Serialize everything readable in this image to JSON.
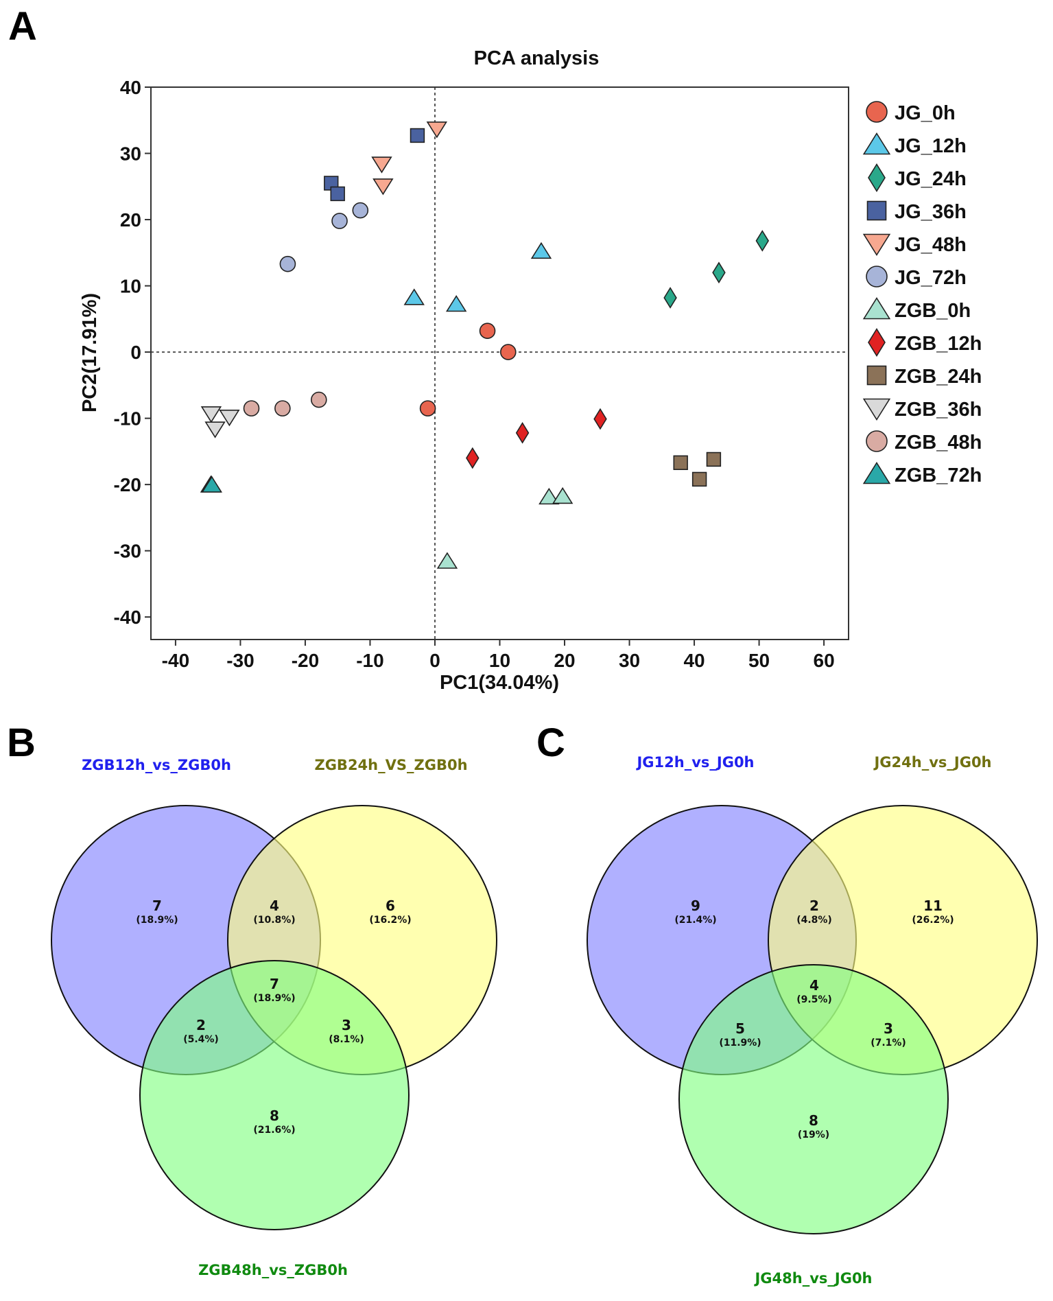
{
  "panels": {
    "a": "A",
    "b": "B",
    "c": "C"
  },
  "chart_data": [
    {
      "type": "scatter",
      "title": "PCA analysis",
      "xlabel": "PC1(34.04%)",
      "ylabel": "PC2(17.91%)",
      "xlim": [
        -43.8,
        63.8
      ],
      "ylim": [
        -43.4,
        40
      ],
      "xticks": [
        -40,
        -30,
        -20,
        -10,
        0,
        10,
        20,
        30,
        40,
        50,
        60
      ],
      "yticks": [
        40,
        30,
        20,
        10,
        0,
        -10,
        -20,
        -30,
        -40
      ],
      "reference_lines": {
        "x": 0,
        "y": 0,
        "style": "dotted"
      },
      "legend_position": "right",
      "series": [
        {
          "name": "JG_0h",
          "marker": "circle",
          "color": "#e8654f",
          "points": [
            [
              8.1,
              3.2
            ],
            [
              11.3,
              0
            ],
            [
              -1.1,
              -8.5
            ]
          ]
        },
        {
          "name": "JG_12h",
          "marker": "triangle-up",
          "color": "#5cc8e8",
          "points": [
            [
              16.4,
              15.2
            ],
            [
              -3.2,
              8.2
            ],
            [
              3.3,
              7.2
            ]
          ]
        },
        {
          "name": "JG_24h",
          "marker": "diamond",
          "color": "#2aa88a",
          "points": [
            [
              50.5,
              16.8
            ],
            [
              43.8,
              12
            ],
            [
              36.3,
              8.2
            ]
          ]
        },
        {
          "name": "JG_36h",
          "marker": "square",
          "color": "#4a62a0",
          "points": [
            [
              -2.7,
              32.7
            ],
            [
              -16,
              25.5
            ],
            [
              -15,
              23.9
            ]
          ]
        },
        {
          "name": "JG_48h",
          "marker": "triangle-down",
          "color": "#f7a890",
          "points": [
            [
              0.3,
              33.7
            ],
            [
              -8.2,
              28.4
            ],
            [
              -8,
              25.1
            ]
          ]
        },
        {
          "name": "JG_72h",
          "marker": "circle",
          "color": "#a7b4d8",
          "points": [
            [
              -22.7,
              13.3
            ],
            [
              -14.7,
              19.8
            ],
            [
              -11.5,
              21.4
            ]
          ]
        },
        {
          "name": "ZGB_0h",
          "marker": "triangle-up",
          "color": "#a9e2d0",
          "points": [
            [
              1.9,
              -31.6
            ],
            [
              17.6,
              -21.9
            ],
            [
              19.7,
              -21.8
            ]
          ]
        },
        {
          "name": "ZGB_12h",
          "marker": "diamond",
          "color": "#e02222",
          "points": [
            [
              5.8,
              -16
            ],
            [
              13.5,
              -12.2
            ],
            [
              25.5,
              -10.1
            ]
          ]
        },
        {
          "name": "ZGB_24h",
          "marker": "square",
          "color": "#8b7258",
          "points": [
            [
              37.9,
              -16.7
            ],
            [
              40.8,
              -19.2
            ],
            [
              43,
              -16.2
            ]
          ]
        },
        {
          "name": "ZGB_36h",
          "marker": "triangle-down",
          "color": "#d9d9d9",
          "points": [
            [
              -34.5,
              -9.3
            ],
            [
              -31.7,
              -9.8
            ],
            [
              -33.9,
              -11.6
            ]
          ]
        },
        {
          "name": "ZGB_48h",
          "marker": "circle",
          "color": "#d9aba3",
          "points": [
            [
              -28.3,
              -8.5
            ],
            [
              -23.5,
              -8.5
            ],
            [
              -17.9,
              -7.2
            ]
          ]
        },
        {
          "name": "ZGB_72h",
          "marker": "triangle-up",
          "color": "#2aa8a8",
          "points": [
            [
              -34.6,
              -20.1
            ],
            [
              -34.5,
              -20.0
            ],
            [
              -34.4,
              -20.1
            ]
          ]
        }
      ]
    },
    {
      "type": "venn",
      "sets": [
        {
          "name": "ZGB12h_vs_ZGB0h",
          "color": "#2020ee"
        },
        {
          "name": "ZGB24h_VS_ZGB0h",
          "color": "#707010"
        },
        {
          "name": "ZGB48h_vs_ZGB0h",
          "color": "#108a10"
        }
      ],
      "regions": {
        "a_only": {
          "count": "7",
          "pct": "(18.9%)"
        },
        "ab": {
          "count": "4",
          "pct": "(10.8%)"
        },
        "b_only": {
          "count": "6",
          "pct": "(16.2%)"
        },
        "abc": {
          "count": "7",
          "pct": "(18.9%)"
        },
        "ac": {
          "count": "2",
          "pct": "(5.4%)"
        },
        "bc": {
          "count": "3",
          "pct": "(8.1%)"
        },
        "c_only": {
          "count": "8",
          "pct": "(21.6%)"
        }
      }
    },
    {
      "type": "venn",
      "sets": [
        {
          "name": "JG12h_vs_JG0h",
          "color": "#2020ee"
        },
        {
          "name": "JG24h_vs_JG0h",
          "color": "#707010"
        },
        {
          "name": "JG48h_vs_JG0h",
          "color": "#108a10"
        }
      ],
      "regions": {
        "a_only": {
          "count": "9",
          "pct": "(21.4%)"
        },
        "ab": {
          "count": "2",
          "pct": "(4.8%)"
        },
        "b_only": {
          "count": "11",
          "pct": "(26.2%)"
        },
        "abc": {
          "count": "4",
          "pct": "(9.5%)"
        },
        "ac": {
          "count": "5",
          "pct": "(11.9%)"
        },
        "bc": {
          "count": "3",
          "pct": "(7.1%)"
        },
        "c_only": {
          "count": "8",
          "pct": "(19%)"
        }
      }
    }
  ],
  "venn_colors": {
    "a": "#8080ff",
    "b": "#ffff80",
    "c": "#80ff80"
  }
}
